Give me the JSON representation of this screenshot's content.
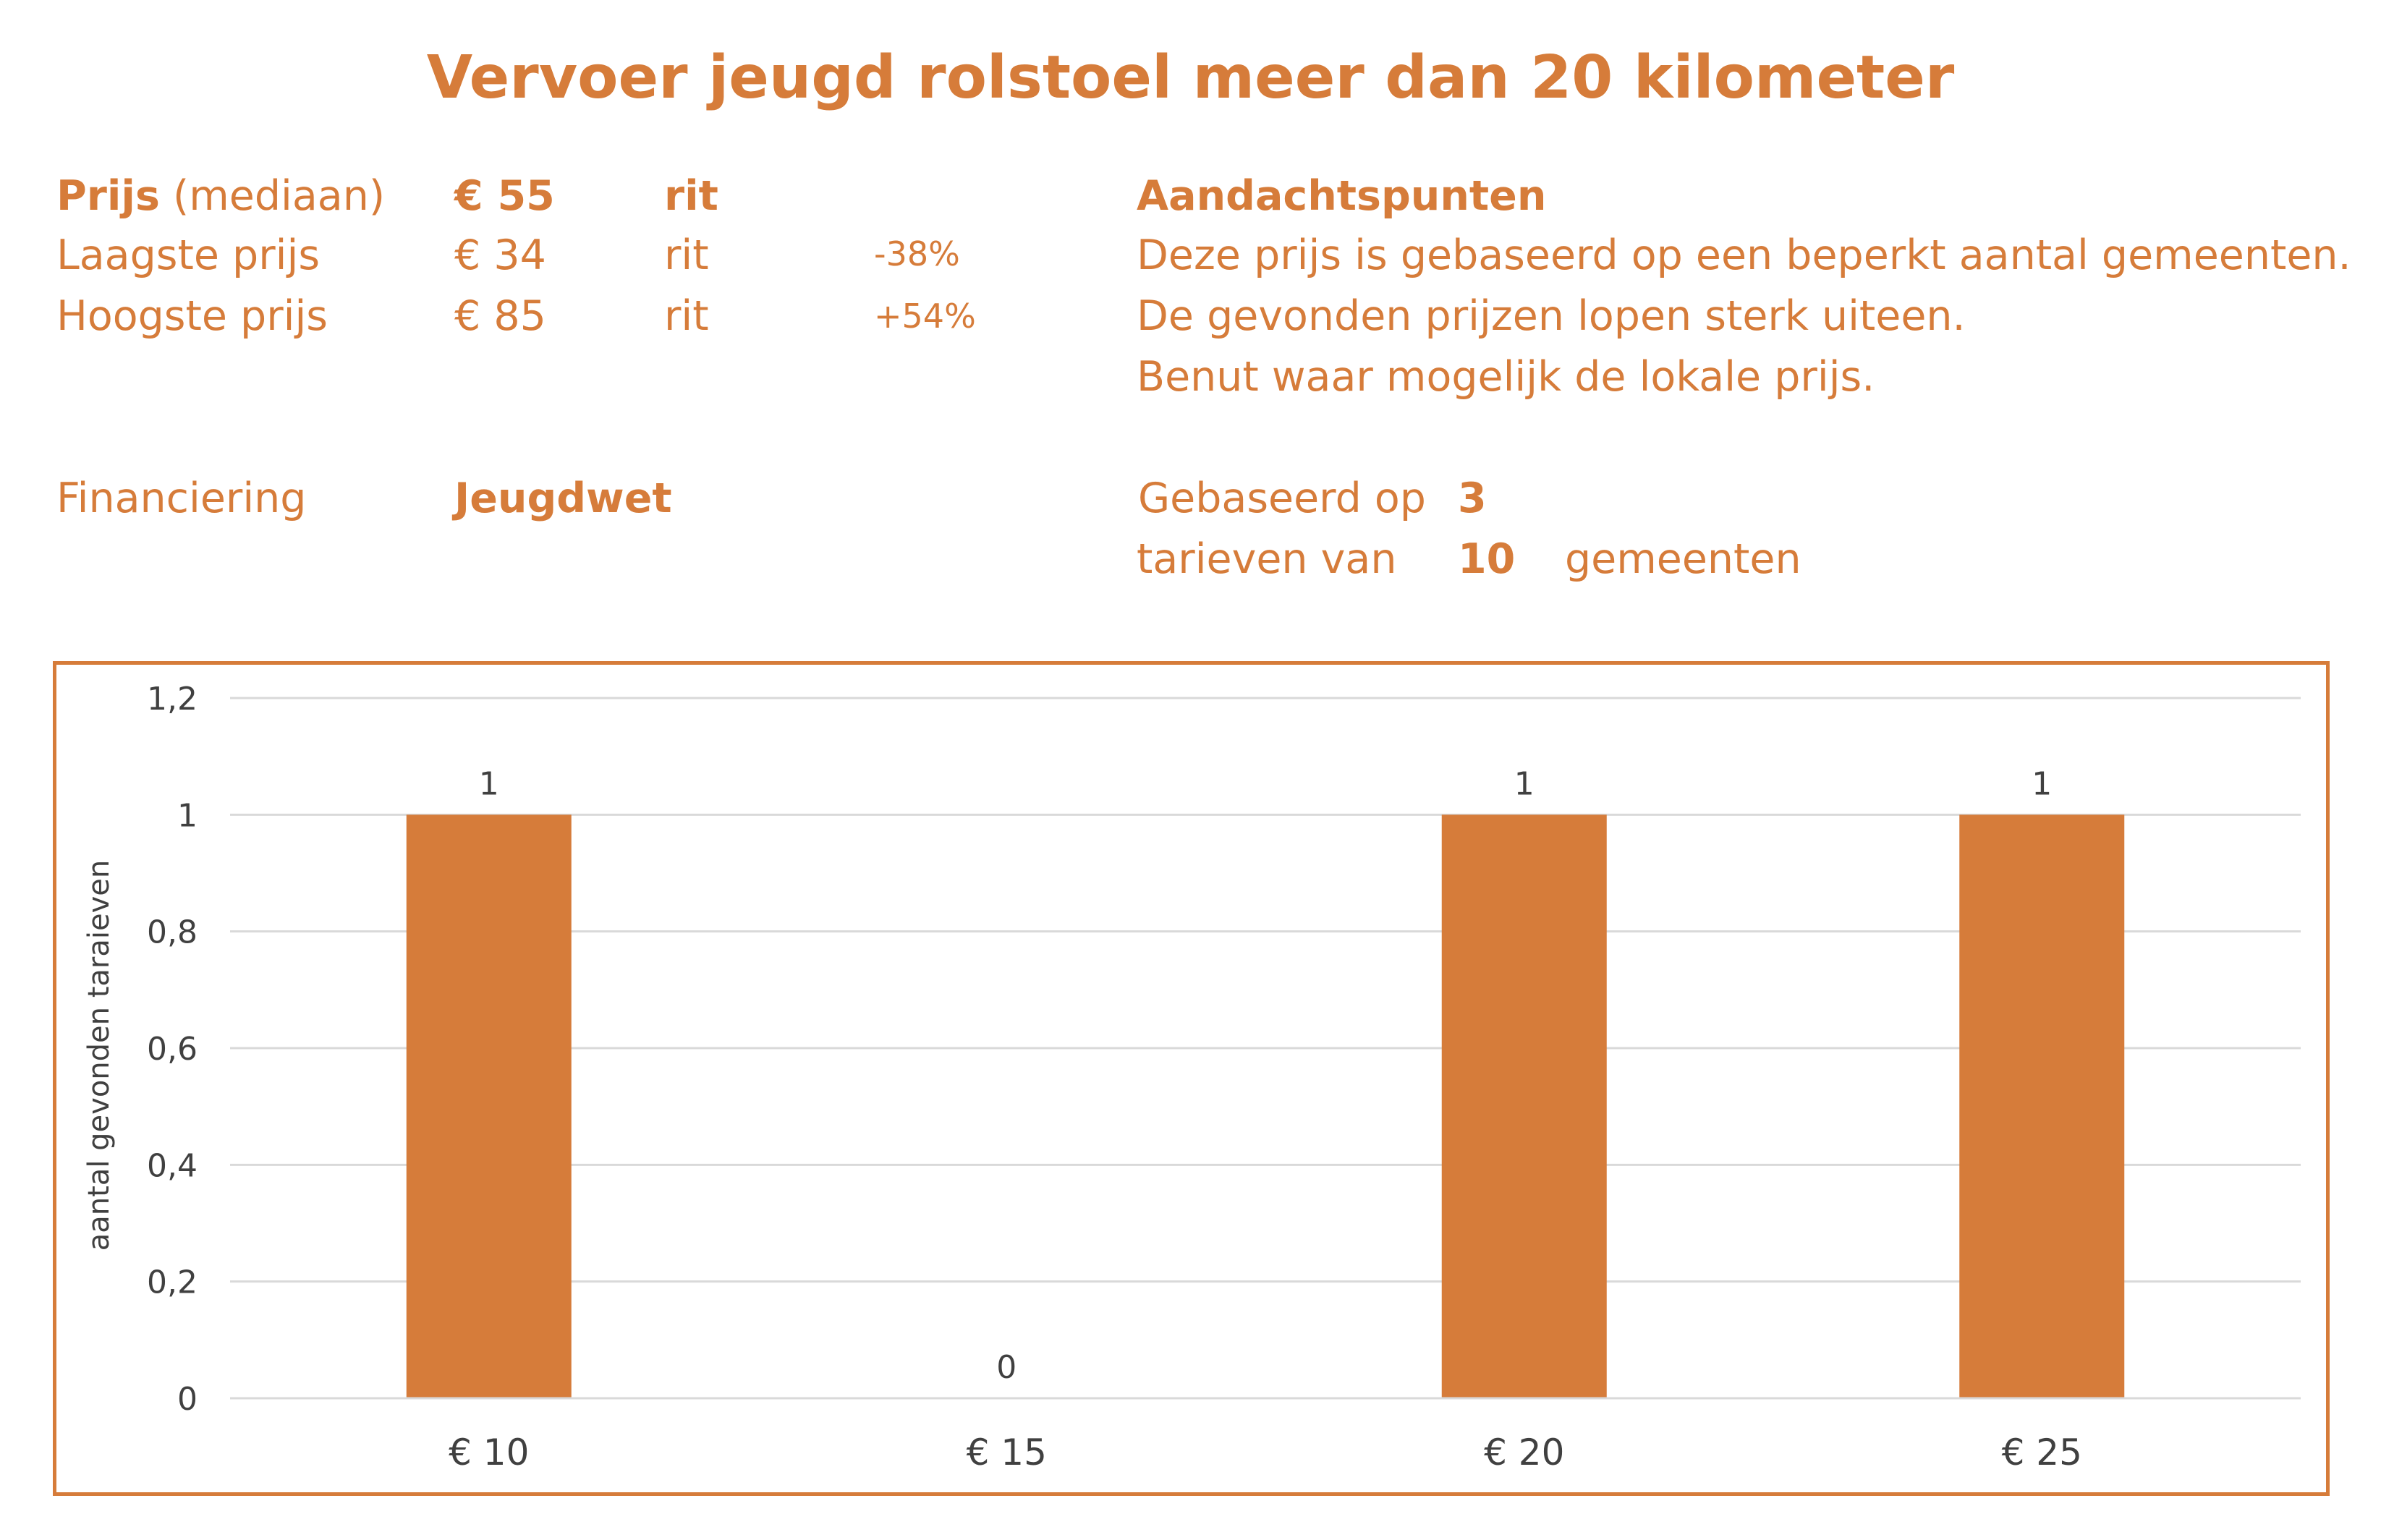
{
  "title": "Vervoer jeugd rolstoel meer dan 20 kilometer",
  "prices": {
    "median": {
      "label_bold": "Prijs",
      "label_rest": " (mediaan)",
      "value": "€ 55",
      "unit": "rit"
    },
    "lowest": {
      "label": "Laagste prijs",
      "value": "€ 34",
      "unit": "rit",
      "pct": "-38%"
    },
    "highest": {
      "label": "Hoogste prijs",
      "value": "€ 85",
      "unit": "rit",
      "pct": "+54%"
    }
  },
  "aandachtspunten": {
    "heading": "Aandachtspunten",
    "lines": [
      "Deze prijs is gebaseerd op een beperkt aantal gemeenten.",
      "De gevonden prijzen lopen sterk uiteen.",
      "Benut waar mogelijk de lokale prijs."
    ]
  },
  "financiering": {
    "label": "Financiering",
    "value": "Jeugdwet"
  },
  "basis": {
    "line1_label": "Gebaseerd op",
    "count": "3",
    "line2_label": "tarieven van",
    "gemeenten_count": "10",
    "gemeenten_label": "gemeenten"
  },
  "colors": {
    "accent": "#D67C3A",
    "grid": "#D9D9D9",
    "text_dark": "#404040"
  },
  "chart_data": {
    "type": "bar",
    "categories": [
      "€ 10",
      "€ 15",
      "€ 20",
      "€ 25"
    ],
    "values": [
      1,
      0,
      1,
      1
    ],
    "data_labels": [
      "1",
      "0",
      "1",
      "1"
    ],
    "y_ticks": [
      "0",
      "0,2",
      "0,4",
      "0,6",
      "0,8",
      "1",
      "1,2"
    ],
    "ylim": [
      0,
      1.2
    ],
    "ylabel": "aantal gevonden taraieven",
    "xlabel": "",
    "grid": true,
    "legend": "none",
    "bar_color": "#D67C3A"
  }
}
